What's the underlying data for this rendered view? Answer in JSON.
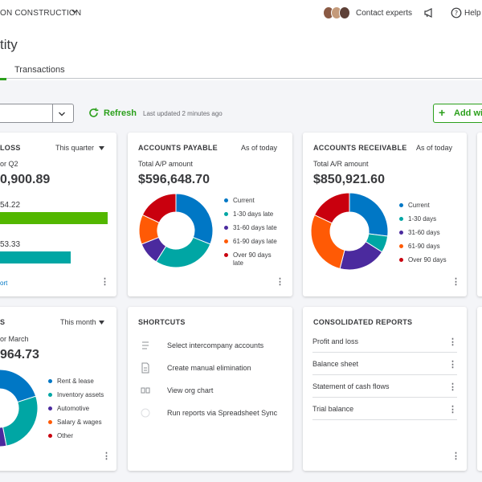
{
  "topbar": {
    "company": "ON CONSTRUCTION",
    "contact_label": "Contact experts",
    "help_label": "Help"
  },
  "header": {
    "title": "tity",
    "tabs": [
      {
        "label": "",
        "active": true
      },
      {
        "label": "Transactions",
        "active": false
      }
    ]
  },
  "toolbar": {
    "refresh_label": "Refresh",
    "updated_text": "Last updated 2 minutes ago",
    "add_label": "Add wi"
  },
  "profit_loss": {
    "title": "LOSS",
    "period": "This quarter",
    "subtitle": "or Q2",
    "amount": "0,900.89",
    "bar1_value": "54.22",
    "bar2_value": "53.33",
    "link": "ort",
    "colors": {
      "income": "#53b700",
      "expenses": "#00a6a4"
    }
  },
  "accounts_payable": {
    "title": "ACCOUNTS PAYABLE",
    "period": "As of today",
    "subtitle": "Total A/P amount",
    "amount": "$596,648.70",
    "legend": [
      "Current",
      "1-30 days late",
      "31-60 days late",
      "61-90 days late",
      "Over 90 days late"
    ],
    "shares": [
      0.31,
      0.28,
      0.1,
      0.13,
      0.18
    ]
  },
  "accounts_receivable": {
    "title": "ACCOUNTS RECEIVABLE",
    "period": "As of today",
    "subtitle": "Total A/R amount",
    "amount": "$850,921.60",
    "legend": [
      "Current",
      "1-30 days",
      "31-60 days",
      "61-90 days",
      "Over 90 days"
    ],
    "shares": [
      0.27,
      0.07,
      0.2,
      0.28,
      0.18
    ]
  },
  "expenses": {
    "title": "S",
    "period": "This month",
    "subtitle": "or March",
    "amount": "964.73",
    "legend": [
      "Rent & lease",
      "Inventory assets",
      "Automotive",
      "Salary & wages",
      "Other"
    ],
    "shares": [
      0.2,
      0.27,
      0.09,
      0.14,
      0.3
    ]
  },
  "shortcuts": {
    "title": "SHORTCUTS",
    "items": [
      {
        "label": "Select intercompany accounts",
        "icon": "accounts-icon"
      },
      {
        "label": "Create manual elimination",
        "icon": "document-icon"
      },
      {
        "label": "View org chart",
        "icon": "org-chart-icon"
      },
      {
        "label": "Run reports via Spreadsheet Sync",
        "icon": "spreadsheet-sync-icon"
      }
    ]
  },
  "consolidated_reports": {
    "title": "CONSOLIDATED REPORTS",
    "items": [
      "Profit and loss",
      "Balance sheet",
      "Statement of cash flows",
      "Trial balance"
    ]
  },
  "colors": {
    "accent": "#2ca01c",
    "link": "#0077c5",
    "series": [
      "#0077c5",
      "#00a6a4",
      "#4b2a9e",
      "#ff5a05",
      "#c9000e"
    ]
  }
}
